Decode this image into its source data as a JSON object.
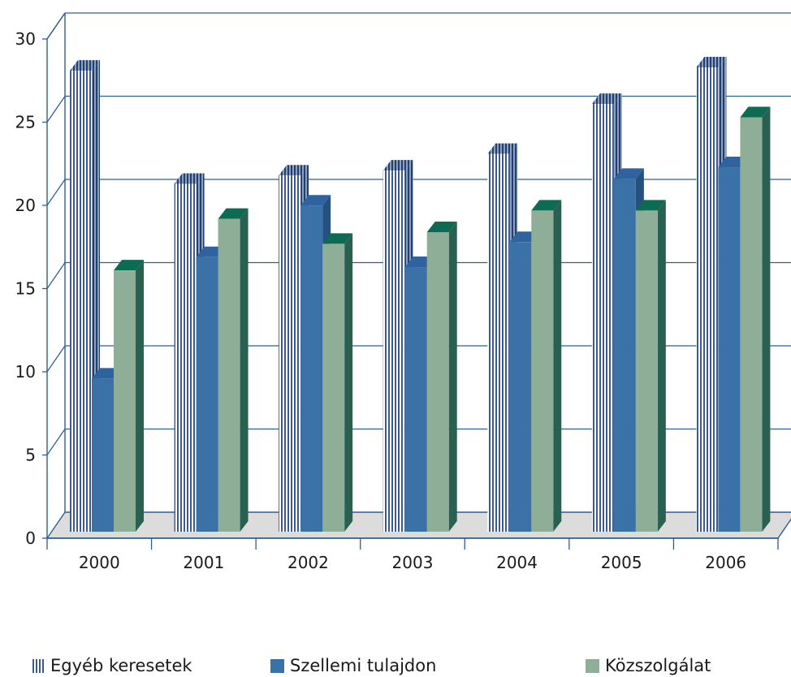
{
  "chart_data": {
    "type": "bar",
    "categories": [
      "2000",
      "2001",
      "2002",
      "2003",
      "2004",
      "2005",
      "2006"
    ],
    "series": [
      {
        "name": "Egyéb keresetek",
        "values": [
          27.7,
          20.9,
          21.4,
          21.7,
          22.7,
          25.7,
          27.9
        ],
        "color": "#ffffff",
        "stripe": "#3d5a8a"
      },
      {
        "name": "Szellemi tulajdon",
        "values": [
          9.2,
          16.5,
          19.6,
          15.9,
          17.4,
          21.2,
          21.9
        ],
        "color": "#3a72a8"
      },
      {
        "name": "Közszolgálat",
        "values": [
          15.7,
          18.8,
          17.3,
          18.0,
          19.3,
          19.3,
          24.9
        ],
        "color": "#8fae98"
      }
    ],
    "yticks": [
      "0",
      "5",
      "10",
      "15",
      "20",
      "25",
      "30"
    ],
    "ylim": [
      0,
      30
    ],
    "grid": true,
    "legend_position": "bottom",
    "title": "",
    "xlabel": "",
    "ylabel": ""
  }
}
